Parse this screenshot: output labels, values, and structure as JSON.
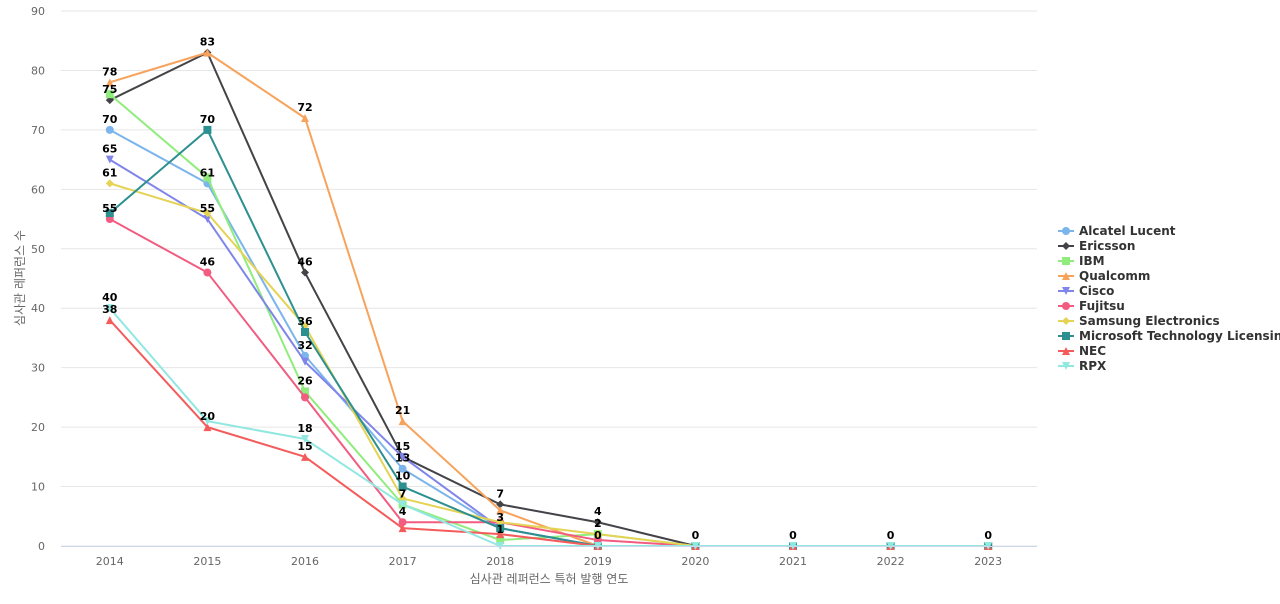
{
  "chart_data": {
    "type": "line",
    "title": "",
    "xlabel": "심사관 레퍼런스 특허 발행 연도",
    "ylabel": "심사관 레퍼런스 수",
    "categories": [
      "2014",
      "2015",
      "2016",
      "2017",
      "2018",
      "2019",
      "2020",
      "2021",
      "2022",
      "2023"
    ],
    "ylim": [
      0,
      90
    ],
    "yticks": [
      0,
      10,
      20,
      30,
      40,
      50,
      60,
      70,
      80,
      90
    ],
    "grid": true,
    "legend_position": "right",
    "series": [
      {
        "name": "Alcatel Lucent",
        "color": "#7cb5ec",
        "marker": "circle",
        "values": [
          70,
          61,
          32,
          13,
          3,
          0,
          0,
          0,
          0,
          0
        ]
      },
      {
        "name": "Ericsson",
        "color": "#434348",
        "marker": "diamond",
        "values": [
          75,
          83,
          46,
          15,
          7,
          4,
          0,
          0,
          0,
          0
        ]
      },
      {
        "name": "IBM",
        "color": "#90ed7d",
        "marker": "square",
        "values": [
          76,
          62,
          26,
          7,
          1,
          2,
          0,
          0,
          0,
          0
        ]
      },
      {
        "name": "Qualcomm",
        "color": "#f7a35c",
        "marker": "triangle",
        "values": [
          78,
          83,
          72,
          21,
          6,
          0,
          0,
          0,
          0,
          0
        ]
      },
      {
        "name": "Cisco",
        "color": "#8085e9",
        "marker": "triangle-down",
        "values": [
          65,
          55,
          31,
          15,
          3,
          0,
          0,
          0,
          0,
          0
        ]
      },
      {
        "name": "Fujitsu",
        "color": "#f15c80",
        "marker": "circle",
        "values": [
          55,
          46,
          25,
          4,
          4,
          1,
          0,
          0,
          0,
          0
        ]
      },
      {
        "name": "Samsung Electronics",
        "color": "#e4d354",
        "marker": "diamond",
        "values": [
          61,
          56,
          37,
          8,
          4,
          2,
          0,
          0,
          0,
          0
        ]
      },
      {
        "name": "Microsoft Technology Licensing",
        "color": "#2b908f",
        "marker": "square",
        "values": [
          56,
          70,
          36,
          10,
          3,
          0,
          0,
          0,
          0,
          0
        ]
      },
      {
        "name": "NEC",
        "color": "#f45b5b",
        "marker": "triangle",
        "values": [
          38,
          20,
          15,
          3,
          2,
          0,
          0,
          0,
          0,
          0
        ]
      },
      {
        "name": "RPX",
        "color": "#91e8e1",
        "marker": "triangle-down",
        "values": [
          40,
          21,
          18,
          7,
          0,
          0,
          0,
          0,
          0,
          0
        ]
      }
    ],
    "data_labels": [
      {
        "category": "2014",
        "values": [
          78,
          75,
          70,
          65,
          61,
          55,
          40,
          38
        ]
      },
      {
        "category": "2015",
        "values": [
          83,
          70,
          61,
          55,
          46,
          20
        ]
      },
      {
        "category": "2016",
        "values": [
          72,
          46,
          36,
          32,
          26,
          18,
          15
        ]
      },
      {
        "category": "2017",
        "values": [
          21,
          15,
          13,
          10,
          7,
          4
        ]
      },
      {
        "category": "2018",
        "values": [
          7,
          3,
          1
        ]
      },
      {
        "category": "2019",
        "values": [
          4,
          2,
          0
        ]
      },
      {
        "category": "2020",
        "values": [
          0
        ]
      },
      {
        "category": "2021",
        "values": [
          0
        ]
      },
      {
        "category": "2022",
        "values": [
          0
        ]
      },
      {
        "category": "2023",
        "values": [
          0
        ]
      }
    ]
  }
}
